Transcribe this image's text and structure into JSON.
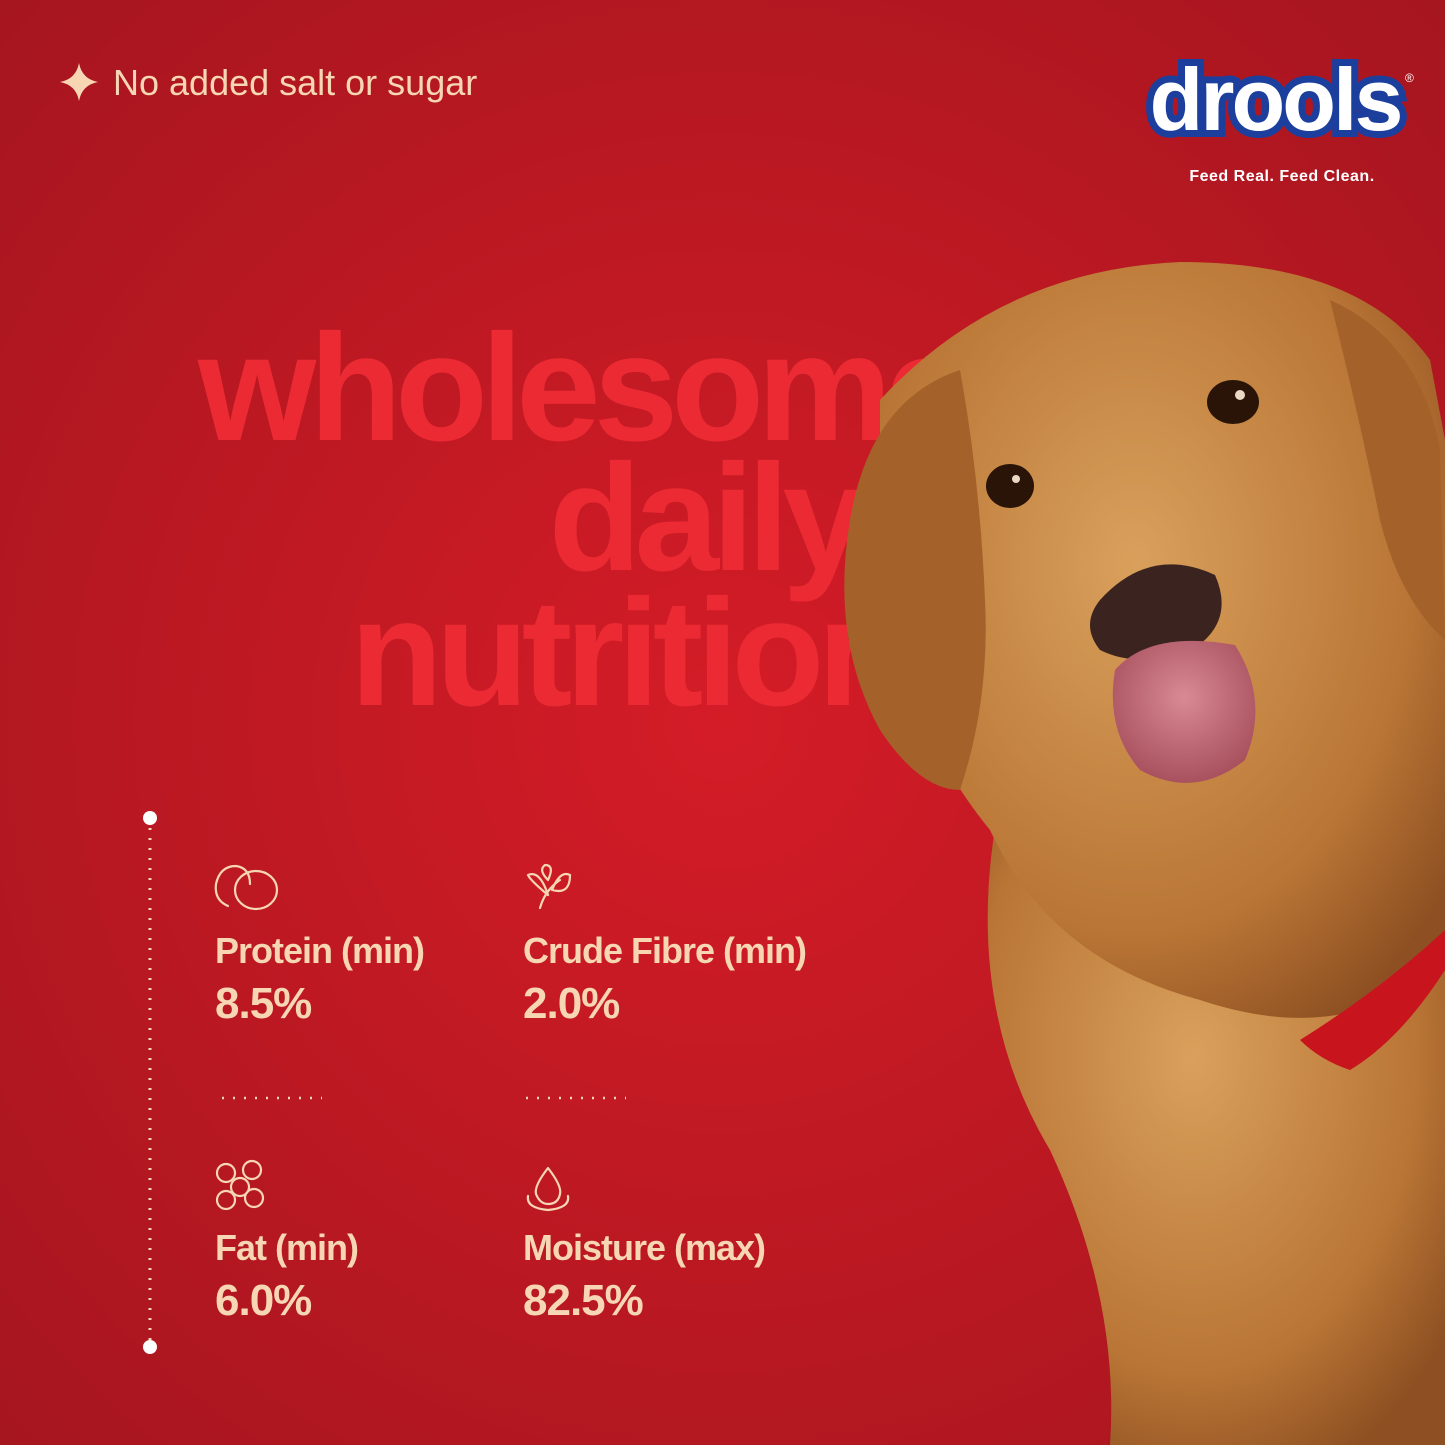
{
  "header": {
    "claim": "No added salt or sugar"
  },
  "brand": {
    "logo": "drools",
    "registered": "®",
    "tagline": "Feed Real. Feed Clean."
  },
  "headline": {
    "lines": [
      "wholesome",
      "daily",
      "nutrition"
    ]
  },
  "nutrients": [
    {
      "label": "Protein (min)",
      "value": "8.5%"
    },
    {
      "label": "Crude Fibre (min)",
      "value": "2.0%"
    },
    {
      "label": "Fat (min)",
      "value": "6.0%"
    },
    {
      "label": "Moisture (max)",
      "value": "82.5%"
    }
  ]
}
